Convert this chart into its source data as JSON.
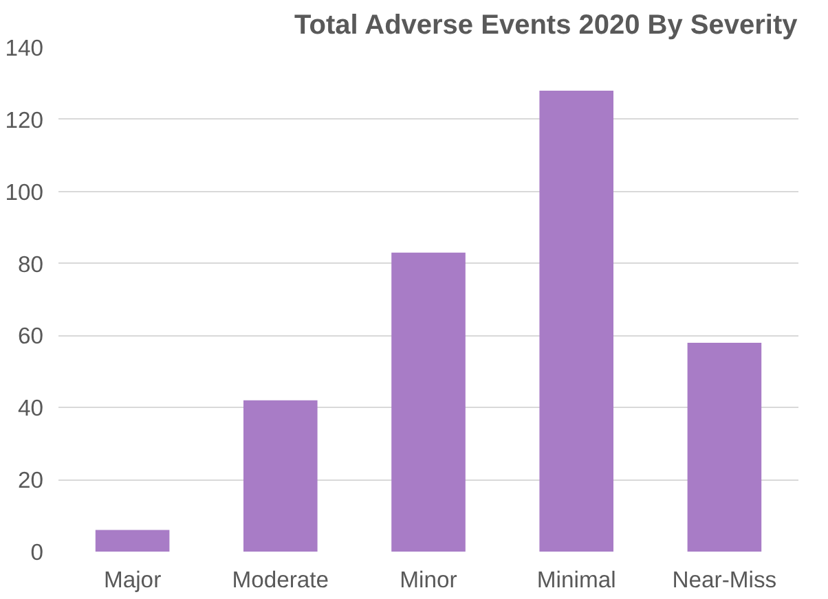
{
  "chart_data": {
    "type": "bar",
    "title": "Total Adverse Events 2020 By Severity",
    "categories": [
      "Major",
      "Moderate",
      "Minor",
      "Minimal",
      "Near-Miss"
    ],
    "values": [
      6,
      42,
      83,
      128,
      58
    ],
    "color": "#a87cc6",
    "ylim": [
      0,
      140
    ],
    "yticks": [
      0,
      20,
      40,
      60,
      80,
      100,
      120,
      140
    ],
    "grid": "y"
  }
}
